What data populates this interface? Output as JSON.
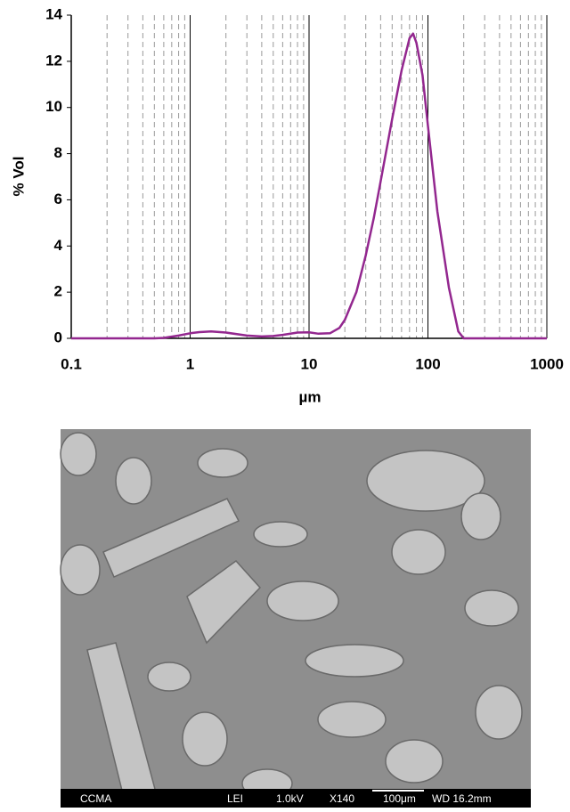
{
  "chart_data": {
    "type": "line",
    "xlabel": "µm",
    "ylabel": "% Vol",
    "x": [
      0.1,
      0.5,
      0.6,
      0.8,
      1,
      1.2,
      1.5,
      2,
      3,
      4,
      5,
      6,
      8,
      10,
      12,
      15,
      18,
      20,
      25,
      30,
      35,
      40,
      50,
      60,
      70,
      75,
      80,
      90,
      100,
      120,
      150,
      180,
      200,
      1000
    ],
    "values": [
      0,
      0,
      0.02,
      0.12,
      0.22,
      0.27,
      0.3,
      0.25,
      0.12,
      0.08,
      0.1,
      0.15,
      0.25,
      0.26,
      0.2,
      0.22,
      0.45,
      0.8,
      2.0,
      3.6,
      5.2,
      6.8,
      9.5,
      11.6,
      13.0,
      13.2,
      12.8,
      11.4,
      9.2,
      5.5,
      2.2,
      0.3,
      0,
      0
    ],
    "color": "#93278f",
    "xscale": "log",
    "xlim": [
      0.1,
      1000
    ],
    "xticks": [
      0.1,
      1,
      10,
      100,
      1000
    ],
    "xminorticks": [
      0.2,
      0.3,
      0.4,
      0.5,
      0.6,
      0.7,
      0.8,
      0.9,
      2,
      3,
      4,
      5,
      6,
      7,
      8,
      9,
      20,
      30,
      40,
      50,
      60,
      70,
      80,
      90,
      200,
      300,
      400,
      500,
      600,
      700,
      800,
      900
    ],
    "ylim": [
      0,
      14
    ],
    "yticks": [
      0,
      2,
      4,
      6,
      8,
      10,
      12,
      14
    ],
    "grid": true
  },
  "micrograph": {
    "labels": [
      "CCMA",
      "LEI",
      "1.0kV",
      "X140",
      "100μm",
      "WD 16.2mm"
    ]
  }
}
